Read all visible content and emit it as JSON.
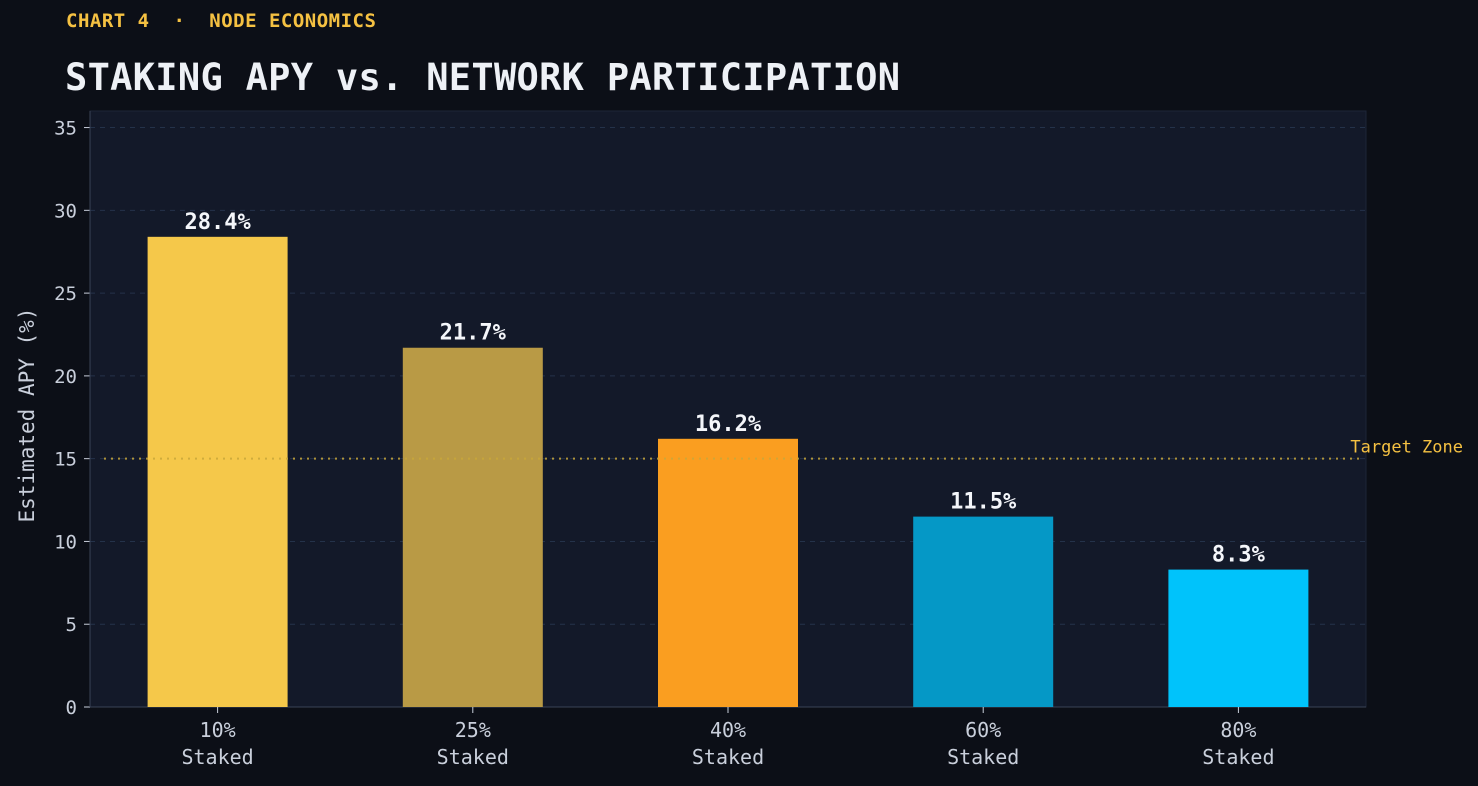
{
  "header": {
    "kicker": "CHART 4  ·  NODE ECONOMICS",
    "title": "STAKING APY vs. NETWORK PARTICIPATION"
  },
  "chart_data": {
    "type": "bar",
    "categories": [
      [
        "10%",
        "Staked"
      ],
      [
        "25%",
        "Staked"
      ],
      [
        "40%",
        "Staked"
      ],
      [
        "60%",
        "Staked"
      ],
      [
        "80%",
        "Staked"
      ]
    ],
    "values": [
      28.4,
      21.7,
      16.2,
      11.5,
      8.3
    ],
    "data_labels": [
      "28.4%",
      "21.7%",
      "16.2%",
      "11.5%",
      "8.3%"
    ],
    "bar_colors": [
      "#f5c84a",
      "#b99a45",
      "#fa9e20",
      "#0598c6",
      "#00c3fb"
    ],
    "ylabel": "Estimated APY (%)",
    "ylim": [
      0,
      36
    ],
    "yticks": [
      0,
      5,
      10,
      15,
      20,
      25,
      30,
      35
    ],
    "grid": true,
    "reference_line": {
      "value": 15,
      "label": "Target Zone",
      "color": "#c9a83a",
      "style": "dotted"
    },
    "colors": {
      "background": "#0c0f17",
      "plot_background": "#131929",
      "grid": "#24324a",
      "text": "#c9cfdb",
      "data_label": "#f4f6fa",
      "accent": "#f5c142"
    }
  }
}
